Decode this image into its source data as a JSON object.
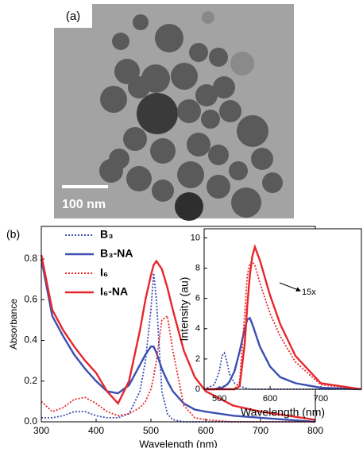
{
  "image": {
    "panel_label": "(a)",
    "scale_bar": "100 nm"
  },
  "chart_data": [
    {
      "type": "line",
      "panel_label": "(b)",
      "xlabel": "Wavelength (nm)",
      "ylabel": "Absorbance",
      "x": [
        300,
        320,
        340,
        360,
        380,
        400,
        420,
        440,
        460,
        480,
        490,
        500,
        505,
        510,
        520,
        530,
        540,
        560,
        580,
        600,
        650,
        700,
        800
      ],
      "series": [
        {
          "name": "B₃",
          "color": "#3b4fb3",
          "style": "dotted",
          "values": [
            0.02,
            0.02,
            0.03,
            0.05,
            0.05,
            0.03,
            0.02,
            0.02,
            0.04,
            0.15,
            0.3,
            0.55,
            0.73,
            0.6,
            0.15,
            0.04,
            0.01,
            0,
            0,
            0,
            0,
            0,
            0
          ]
        },
        {
          "name": "B₃-NA",
          "color": "#3b4fb3",
          "style": "solid",
          "values": [
            0.8,
            0.52,
            0.42,
            0.33,
            0.26,
            0.2,
            0.15,
            0.14,
            0.18,
            0.28,
            0.33,
            0.37,
            0.37,
            0.34,
            0.26,
            0.2,
            0.15,
            0.09,
            0.06,
            0.05,
            0.03,
            0.02,
            0
          ]
        },
        {
          "name": "I₆",
          "color": "#e8262a",
          "style": "dotted",
          "values": [
            0.1,
            0.05,
            0.07,
            0.11,
            0.12,
            0.09,
            0.05,
            0.03,
            0.04,
            0.07,
            0.1,
            0.16,
            0.22,
            0.3,
            0.5,
            0.52,
            0.35,
            0.08,
            0.02,
            0.01,
            0,
            0,
            0
          ]
        },
        {
          "name": "I₆-NA",
          "color": "#e8262a",
          "style": "solid",
          "values": [
            0.82,
            0.55,
            0.45,
            0.37,
            0.3,
            0.24,
            0.15,
            0.09,
            0.2,
            0.45,
            0.6,
            0.72,
            0.77,
            0.79,
            0.75,
            0.66,
            0.55,
            0.35,
            0.22,
            0.15,
            0.08,
            0.05,
            0.01
          ]
        }
      ],
      "xlim": [
        300,
        800
      ],
      "xticks": [
        300,
        400,
        500,
        600,
        700,
        800
      ],
      "ylim": [
        0,
        0.96
      ],
      "yticks": [
        {
          "value": 0,
          "label": "0.0"
        },
        0.2,
        0.4,
        0.6,
        0.8
      ],
      "legend": "upper left"
    },
    {
      "type": "line",
      "xlabel": "Wavelength (nm)",
      "ylabel": "Intensity (au)",
      "annotation": "15x",
      "x": [
        470,
        490,
        500,
        505,
        510,
        515,
        520,
        530,
        540,
        550,
        555,
        560,
        565,
        570,
        580,
        600,
        620,
        650,
        700,
        780
      ],
      "series": [
        {
          "color": "#3b4fb3",
          "style": "dotted",
          "values": [
            0,
            0.3,
            1.2,
            2.2,
            2.4,
            1.8,
            1.0,
            0.4,
            0.2,
            0.1,
            0.05,
            0,
            0,
            0,
            0,
            0,
            0,
            0,
            0,
            0
          ]
        },
        {
          "color": "#3b4fb3",
          "style": "solid",
          "values": [
            0,
            0,
            0.1,
            0.1,
            0.2,
            0.3,
            0.5,
            1.2,
            2.5,
            4,
            4.6,
            4.7,
            4.3,
            3.8,
            2.8,
            1.5,
            0.8,
            0.4,
            0.1,
            0
          ]
        },
        {
          "color": "#e8262a",
          "style": "dotted",
          "values": [
            0,
            0,
            0,
            0,
            0,
            0,
            0,
            0,
            0.5,
            5,
            7.5,
            8.3,
            8.4,
            8.2,
            7,
            5,
            3.5,
            1.8,
            0.3,
            0
          ]
        },
        {
          "color": "#e8262a",
          "style": "solid",
          "values": [
            0,
            0,
            0,
            0,
            0,
            0,
            0,
            0,
            0.2,
            3,
            5.5,
            7.5,
            8.8,
            9.4,
            8.5,
            6.2,
            4.3,
            2.2,
            0.4,
            0
          ]
        }
      ],
      "xlim": [
        470,
        780
      ],
      "xticks": [
        500,
        600,
        700
      ],
      "ylim": [
        0,
        10.6
      ],
      "yticks": [
        0,
        2,
        4,
        6,
        8,
        10
      ]
    }
  ]
}
